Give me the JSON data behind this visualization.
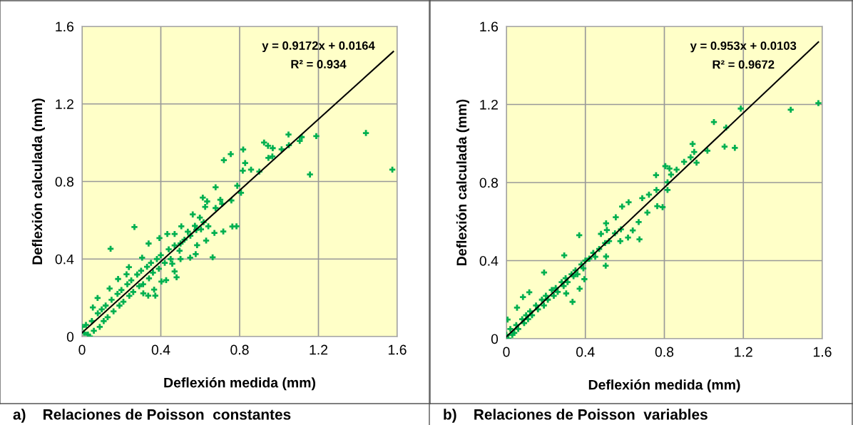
{
  "chart_data": [
    {
      "type": "scatter",
      "xlabel": "Deflexión medida (mm)",
      "ylabel": "Deflexión calculada (mm)",
      "xlim": [
        0,
        1.6
      ],
      "ylim": [
        0,
        1.6
      ],
      "xticks": [
        0,
        0.4,
        0.8,
        1.2,
        1.6
      ],
      "yticks": [
        0,
        0.4,
        0.8,
        1.2,
        1.6
      ],
      "grid": true,
      "annotations": [
        "y = 0.9172x + 0.0164",
        "R² = 0.934",
        "a)    Relaciones de Poisson  constantes"
      ],
      "series": [
        {
          "marker": "cross",
          "color": "#00b050",
          "x": [
            1.441,
            1.575,
            1.157,
            1.189,
            1.048,
            1.115,
            1.105,
            1.05,
            1.013,
            0.968,
            0.924,
            0.944,
            0.946,
            0.966,
            0.818,
            0.755,
            0.72,
            0.828,
            0.816,
            0.858,
            0.9,
            0.788,
            0.678,
            0.807,
            0.758,
            0.702,
            0.711,
            0.613,
            0.635,
            0.625,
            0.678,
            0.763,
            0.784,
            0.717,
            0.672,
            0.663,
            0.562,
            0.598,
            0.617,
            0.573,
            0.604,
            0.641,
            0.63,
            0.584,
            0.577,
            0.549,
            0.266,
            0.145,
            0.504,
            0.537,
            0.47,
            0.433,
            0.393,
            0.338,
            0.495,
            0.5,
            0.458,
            0.47,
            0.48,
            0.427,
            0.403,
            0.372,
            0.366,
            0.336,
            0.311,
            0.305,
            0.238,
            0.226,
            0.183,
            0.14,
            0.079,
            0.055,
            0.02,
            0.03,
            0.05,
            0.06,
            0.08,
            0.09,
            0.1,
            0.11,
            0.12,
            0.13,
            0.15,
            0.16,
            0.18,
            0.19,
            0.2,
            0.21,
            0.23,
            0.24,
            0.25,
            0.26,
            0.28,
            0.29,
            0.3,
            0.31,
            0.33,
            0.34,
            0.35,
            0.36,
            0.38,
            0.39,
            0.4,
            0.42,
            0.44,
            0.45,
            0.47,
            0.5,
            0.52,
            0.55,
            0.58,
            0.0,
            0.01,
            0.04
          ],
          "values": [
            1.05,
            0.861,
            0.836,
            1.034,
            1.042,
            1.029,
            1.009,
            0.987,
            0.966,
            0.972,
            1.001,
            0.984,
            0.922,
            0.929,
            0.965,
            0.941,
            0.91,
            0.895,
            0.856,
            0.861,
            0.851,
            0.778,
            0.77,
            0.742,
            0.702,
            0.706,
            0.685,
            0.717,
            0.697,
            0.669,
            0.663,
            0.568,
            0.569,
            0.542,
            0.535,
            0.409,
            0.63,
            0.614,
            0.59,
            0.571,
            0.553,
            0.569,
            0.495,
            0.471,
            0.425,
            0.407,
            0.565,
            0.453,
            0.569,
            0.541,
            0.529,
            0.529,
            0.508,
            0.48,
            0.443,
            0.4,
            0.376,
            0.336,
            0.306,
            0.291,
            0.284,
            0.211,
            0.242,
            0.211,
            0.223,
            0.407,
            0.358,
            0.321,
            0.297,
            0.248,
            0.199,
            0.15,
            0.06,
            0.01,
            0.08,
            0.03,
            0.12,
            0.05,
            0.14,
            0.08,
            0.16,
            0.1,
            0.19,
            0.13,
            0.22,
            0.16,
            0.24,
            0.18,
            0.27,
            0.21,
            0.29,
            0.23,
            0.32,
            0.26,
            0.34,
            0.27,
            0.36,
            0.3,
            0.38,
            0.33,
            0.4,
            0.35,
            0.42,
            0.38,
            0.45,
            0.4,
            0.47,
            0.48,
            0.5,
            0.52,
            0.55,
            0.05,
            0.02,
            0.0
          ]
        },
        {
          "type": "line",
          "color": "#000000",
          "x": [
            0,
            1.58
          ],
          "values": [
            0.02,
            1.47
          ],
          "marker": "none"
        }
      ]
    },
    {
      "type": "scatter",
      "xlabel": "Deflexión medida (mm)",
      "ylabel": "Deflexión calculada (mm)",
      "xlim": [
        0,
        1.6
      ],
      "ylim": [
        0,
        1.6
      ],
      "xticks": [
        0,
        0.4,
        0.8,
        1.2,
        1.6
      ],
      "yticks": [
        0,
        0.4,
        0.8,
        1.2,
        1.6
      ],
      "grid": true,
      "annotations": [
        "y = 0.953x + 0.0103",
        "R² = 0.9672",
        "b)    Relaciones de Poisson  variables"
      ],
      "series": [
        {
          "marker": "cross",
          "color": "#00b050",
          "x": [
            1.58,
            1.44,
            1.187,
            1.051,
            1.113,
            1.105,
            1.157,
            0.943,
            0.951,
            1.018,
            0.933,
            0.963,
            0.9,
            0.862,
            0.805,
            0.826,
            0.834,
            0.758,
            0.816,
            0.76,
            0.816,
            0.764,
            0.791,
            0.722,
            0.688,
            0.714,
            0.67,
            0.674,
            0.64,
            0.616,
            0.619,
            0.586,
            0.554,
            0.505,
            0.509,
            0.369,
            0.479,
            0.577,
            0.503,
            0.505,
            0.293,
            0.191,
            0.371,
            0.395,
            0.303,
            0.335,
            0.084,
            0.116,
            0.054,
            0.006,
            0.02,
            0.03,
            0.05,
            0.06,
            0.08,
            0.09,
            0.1,
            0.11,
            0.12,
            0.13,
            0.15,
            0.16,
            0.18,
            0.19,
            0.2,
            0.21,
            0.23,
            0.24,
            0.25,
            0.26,
            0.28,
            0.29,
            0.3,
            0.31,
            0.33,
            0.34,
            0.35,
            0.36,
            0.38,
            0.39,
            0.4,
            0.42,
            0.44,
            0.45,
            0.47,
            0.5,
            0.52,
            0.55,
            0.58,
            0.0,
            0.01,
            0.04
          ],
          "values": [
            1.207,
            1.173,
            1.179,
            1.11,
            1.082,
            0.984,
            0.978,
            0.998,
            0.957,
            0.963,
            0.929,
            0.902,
            0.906,
            0.866,
            0.884,
            0.872,
            0.841,
            0.838,
            0.801,
            0.762,
            0.762,
            0.679,
            0.674,
            0.738,
            0.72,
            0.646,
            0.598,
            0.509,
            0.555,
            0.518,
            0.699,
            0.677,
            0.622,
            0.591,
            0.557,
            0.53,
            0.537,
            0.5,
            0.374,
            0.421,
            0.427,
            0.339,
            0.256,
            0.305,
            0.232,
            0.189,
            0.213,
            0.238,
            0.159,
            0.098,
            0.05,
            0.02,
            0.07,
            0.05,
            0.1,
            0.08,
            0.12,
            0.1,
            0.14,
            0.12,
            0.17,
            0.15,
            0.2,
            0.17,
            0.22,
            0.2,
            0.25,
            0.22,
            0.26,
            0.24,
            0.29,
            0.27,
            0.31,
            0.29,
            0.33,
            0.32,
            0.35,
            0.33,
            0.38,
            0.36,
            0.4,
            0.41,
            0.44,
            0.42,
            0.46,
            0.49,
            0.5,
            0.54,
            0.56,
            0.02,
            0.0,
            0.03
          ]
        },
        {
          "type": "line",
          "color": "#000000",
          "x": [
            0,
            1.58
          ],
          "values": [
            0.01,
            1.52
          ],
          "marker": "none"
        }
      ]
    }
  ]
}
